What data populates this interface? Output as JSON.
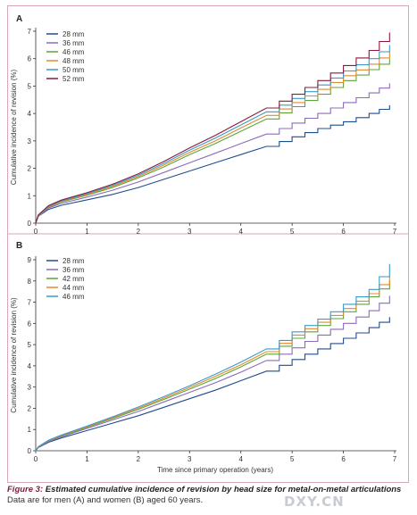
{
  "caption": {
    "label": "Figure 3:",
    "title": "Estimated cumulative incidence of revision by head size for metal-on-metal articulations",
    "note": "Data are for men (A) and women (B) aged 60 years."
  },
  "watermark": "DXY.CN",
  "chart_data": [
    {
      "panel": "A",
      "type": "line",
      "ylabel": "Cumulative incidence of revision (%)",
      "xlabel": "",
      "xlim": [
        0,
        7
      ],
      "ylim": [
        0,
        7
      ],
      "xticks": [
        0,
        1,
        2,
        3,
        4,
        5,
        6,
        7
      ],
      "yticks": [
        0,
        1,
        2,
        3,
        4,
        5,
        6,
        7
      ],
      "x": [
        0,
        0.05,
        0.25,
        0.5,
        1,
        1.5,
        2,
        2.5,
        3,
        3.5,
        4,
        4.5,
        5,
        5.5,
        6,
        6.5,
        6.9
      ],
      "series": [
        {
          "name": "28 mm",
          "color": "#1f4e8c",
          "values": [
            0,
            0.25,
            0.5,
            0.65,
            0.85,
            1.05,
            1.3,
            1.6,
            1.9,
            2.2,
            2.5,
            2.8,
            3.15,
            3.45,
            3.7,
            4.0,
            4.3
          ]
        },
        {
          "name": "36 mm",
          "color": "#8c6bb8",
          "values": [
            0,
            0.25,
            0.55,
            0.72,
            0.95,
            1.2,
            1.5,
            1.85,
            2.2,
            2.55,
            2.9,
            3.25,
            3.65,
            4.0,
            4.4,
            4.75,
            5.1
          ]
        },
        {
          "name": "46 mm",
          "color": "#5fa43a",
          "values": [
            0,
            0.28,
            0.58,
            0.77,
            1.02,
            1.3,
            1.65,
            2.05,
            2.5,
            2.9,
            3.35,
            3.8,
            4.25,
            4.7,
            5.2,
            5.6,
            6.0
          ]
        },
        {
          "name": "48 mm",
          "color": "#e08a2c",
          "values": [
            0,
            0.28,
            0.6,
            0.79,
            1.05,
            1.34,
            1.7,
            2.12,
            2.58,
            3.0,
            3.47,
            3.93,
            4.4,
            4.88,
            5.38,
            5.8,
            6.25
          ]
        },
        {
          "name": "50 mm",
          "color": "#3a9ac9",
          "values": [
            0,
            0.29,
            0.62,
            0.81,
            1.08,
            1.38,
            1.75,
            2.18,
            2.66,
            3.1,
            3.58,
            4.06,
            4.55,
            5.04,
            5.55,
            6.0,
            6.5
          ]
        },
        {
          "name": "52 mm",
          "color": "#8a1a3c",
          "values": [
            0,
            0.3,
            0.64,
            0.84,
            1.11,
            1.42,
            1.8,
            2.25,
            2.74,
            3.2,
            3.7,
            4.2,
            4.7,
            5.2,
            5.75,
            6.3,
            6.95
          ]
        }
      ],
      "legend": "top-left"
    },
    {
      "panel": "B",
      "type": "line",
      "ylabel": "Cumulative incidence of revision (%)",
      "xlabel": "Time since primary operation (years)",
      "xlim": [
        0,
        7
      ],
      "ylim": [
        0,
        9
      ],
      "xticks": [
        0,
        1,
        2,
        3,
        4,
        5,
        6,
        7
      ],
      "yticks": [
        0,
        1,
        2,
        3,
        4,
        5,
        6,
        7,
        8,
        9
      ],
      "x": [
        0,
        0.05,
        0.25,
        0.5,
        1,
        1.5,
        2,
        2.5,
        3,
        3.5,
        4,
        4.5,
        5,
        5.5,
        6,
        6.5,
        6.9
      ],
      "series": [
        {
          "name": "28 mm",
          "color": "#1f4e8c",
          "values": [
            0,
            0.15,
            0.4,
            0.6,
            0.95,
            1.3,
            1.65,
            2.05,
            2.45,
            2.85,
            3.3,
            3.75,
            4.3,
            4.8,
            5.3,
            5.8,
            6.3
          ]
        },
        {
          "name": "36 mm",
          "color": "#8c6bb8",
          "values": [
            0,
            0.17,
            0.44,
            0.66,
            1.05,
            1.45,
            1.85,
            2.3,
            2.75,
            3.2,
            3.7,
            4.25,
            4.85,
            5.45,
            6.0,
            6.6,
            7.3
          ]
        },
        {
          "name": "42 mm",
          "color": "#5fa43a",
          "values": [
            0,
            0.18,
            0.47,
            0.7,
            1.1,
            1.52,
            1.95,
            2.42,
            2.9,
            3.4,
            3.95,
            4.55,
            5.3,
            5.9,
            6.55,
            7.25,
            8.0
          ]
        },
        {
          "name": "44 mm",
          "color": "#e08a2c",
          "values": [
            0,
            0.18,
            0.48,
            0.72,
            1.13,
            1.56,
            2.0,
            2.48,
            2.98,
            3.5,
            4.05,
            4.67,
            5.45,
            6.05,
            6.7,
            7.4,
            8.25
          ]
        },
        {
          "name": "46 mm",
          "color": "#3a9ac9",
          "values": [
            0,
            0.19,
            0.5,
            0.74,
            1.16,
            1.6,
            2.06,
            2.55,
            3.06,
            3.6,
            4.17,
            4.8,
            5.6,
            6.2,
            6.9,
            7.6,
            8.8
          ]
        }
      ],
      "legend": "top-left"
    }
  ]
}
